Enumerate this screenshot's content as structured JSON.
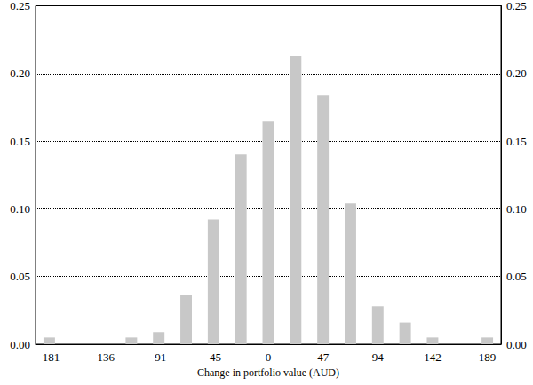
{
  "chart_data": {
    "type": "bar",
    "x_label": "Change in portfolio value (AUD)",
    "categories": [
      "-181",
      null,
      "-136",
      null,
      "-91",
      null,
      "-45",
      null,
      "0",
      null,
      "47",
      null,
      "94",
      null,
      "142",
      null,
      "189"
    ],
    "values": [
      0.005,
      0,
      0,
      0.005,
      0.009,
      0.036,
      0.092,
      0.14,
      0.165,
      0.213,
      0.184,
      0.104,
      0.028,
      0.016,
      0.005,
      0,
      0.005
    ],
    "color": "#c8c8c8",
    "ylim": [
      0,
      0.25
    ],
    "yticks": [
      {
        "value": 0,
        "label": "0.00"
      },
      {
        "value": 0.05,
        "label": "0.05"
      },
      {
        "value": 0.1,
        "label": "0.10"
      },
      {
        "value": 0.15,
        "label": "0.15"
      },
      {
        "value": 0.2,
        "label": "0.20"
      },
      {
        "value": 0.25,
        "label": "0.25"
      }
    ],
    "grid": true
  }
}
